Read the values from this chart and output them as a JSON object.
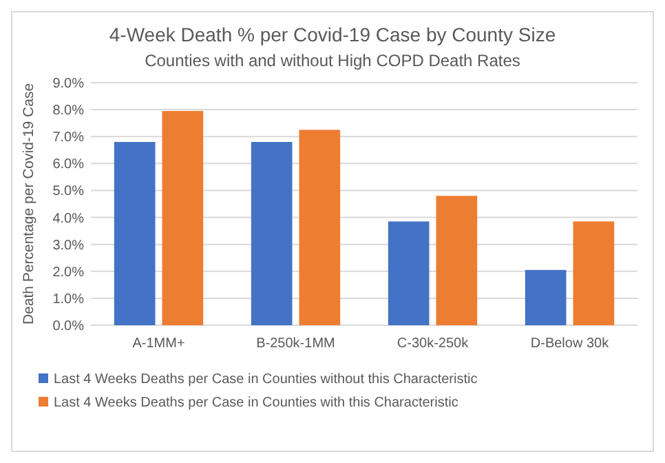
{
  "chart_data": {
    "type": "bar",
    "title": "4-Week Death % per Covid-19 Case by County Size",
    "subtitle": "Counties with and without High COPD Death Rates",
    "ylabel": "Death Percentage per Covid-19 Case",
    "categories": [
      "A-1MM+",
      "B-250k-1MM",
      "C-30k-250k",
      "D-Below 30k"
    ],
    "series": [
      {
        "name": "Last 4 Weeks Deaths per Case in Counties without this Characteristic",
        "color": "#4472c4",
        "values": [
          6.8,
          6.8,
          3.85,
          2.05
        ]
      },
      {
        "name": "Last 4 Weeks Deaths per Case in Counties with this Characteristic",
        "color": "#ed7d31",
        "values": [
          7.95,
          7.25,
          4.8,
          3.85
        ]
      }
    ],
    "ylim": [
      0,
      9
    ],
    "yticks": [
      {
        "value": 0,
        "label": "0.0%"
      },
      {
        "value": 1,
        "label": "1.0%"
      },
      {
        "value": 2,
        "label": "2.0%"
      },
      {
        "value": 3,
        "label": "3.0%"
      },
      {
        "value": 4,
        "label": "4.0%"
      },
      {
        "value": 5,
        "label": "5.0%"
      },
      {
        "value": 6,
        "label": "6.0%"
      },
      {
        "value": 7,
        "label": "7.0%"
      },
      {
        "value": 8,
        "label": "8.0%"
      },
      {
        "value": 9,
        "label": "9.0%"
      }
    ],
    "grid": "y",
    "legend": "bottom"
  }
}
